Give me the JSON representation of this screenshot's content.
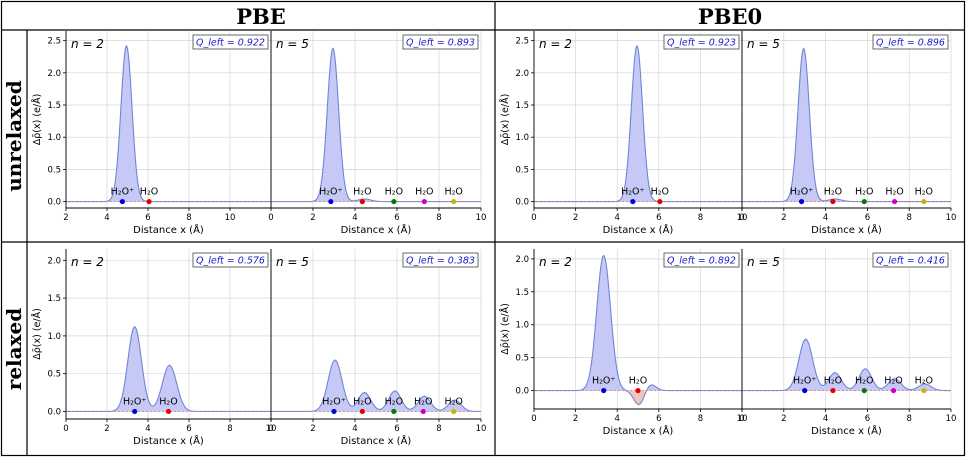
{
  "column_headers": [
    "PBE",
    "PBE0"
  ],
  "row_headers": [
    "unrelaxed",
    "relaxed"
  ],
  "colors": {
    "fill_positive": "#c6c9f5",
    "fill_negative": "#f6c3c3",
    "line": "#6f86d6",
    "grid": "#d6d6d6",
    "q_label": "#1a1acc",
    "marker_h3o": "#0000dd",
    "marker_h2o_1": "#e60000",
    "marker_h2o_2": "#007a00",
    "marker_h2o_3": "#cc00cc",
    "marker_h2o_4": "#c8b400"
  },
  "chart_data": [
    {
      "type": "area",
      "functional": "PBE",
      "geometry": "unrelaxed",
      "n_label": "n = 2",
      "q_label": "Q_left = 0.922",
      "xlabel": "Distance x (Å)",
      "ylabel": "Δρ̄(x) (e/Å)",
      "xlim": [
        2,
        12
      ],
      "ylim": [
        -0.1,
        2.65
      ],
      "xticks": [
        "2",
        "4",
        "6",
        "8",
        "10"
      ],
      "yticks": [
        "0.0",
        "0.5",
        "1.0",
        "1.5",
        "2.0",
        "2.5"
      ],
      "peaks": [
        {
          "center": 4.95,
          "height": 2.42,
          "width": 0.27
        }
      ],
      "markers": [
        {
          "label": "H₂O⁺",
          "x": 4.75,
          "color": "#0000dd"
        },
        {
          "label": "H₂O",
          "x": 6.05,
          "color": "#e60000"
        }
      ]
    },
    {
      "type": "area",
      "functional": "PBE",
      "geometry": "unrelaxed",
      "n_label": "n = 5",
      "q_label": "Q_left = 0.893",
      "xlabel": "Distance x (Å)",
      "xlim": [
        0,
        10
      ],
      "ylim": [
        -0.1,
        2.65
      ],
      "xticks": [
        "0",
        "2",
        "4",
        "6",
        "8",
        "10"
      ],
      "peaks": [
        {
          "center": 2.95,
          "height": 2.38,
          "width": 0.27
        },
        {
          "center": 4.45,
          "height": 0.04,
          "width": 0.3
        }
      ],
      "markers": [
        {
          "label": "H₂O⁺",
          "x": 2.85,
          "color": "#0000dd"
        },
        {
          "label": "H₂O",
          "x": 4.35,
          "color": "#e60000"
        },
        {
          "label": "H₂O",
          "x": 5.85,
          "color": "#007a00"
        },
        {
          "label": "H₂O",
          "x": 7.3,
          "color": "#cc00cc"
        },
        {
          "label": "H₂O",
          "x": 8.7,
          "color": "#c8b400"
        }
      ]
    },
    {
      "type": "area",
      "functional": "PBE0",
      "geometry": "unrelaxed",
      "n_label": "n = 2",
      "q_label": "Q_left = 0.923",
      "xlabel": "Distance x (Å)",
      "ylabel": "Δρ̄(x) (e/Å)",
      "xlim": [
        0,
        10
      ],
      "ylim": [
        -0.1,
        2.65
      ],
      "xticks": [
        "0",
        "2",
        "4",
        "6",
        "8",
        "10"
      ],
      "yticks": [
        "0.0",
        "0.5",
        "1.0",
        "1.5",
        "2.0",
        "2.5"
      ],
      "peaks": [
        {
          "center": 4.95,
          "height": 2.42,
          "width": 0.27
        }
      ],
      "markers": [
        {
          "label": "H₂O⁺",
          "x": 4.75,
          "color": "#0000dd"
        },
        {
          "label": "H₂O",
          "x": 6.05,
          "color": "#e60000"
        }
      ]
    },
    {
      "type": "area",
      "functional": "PBE0",
      "geometry": "unrelaxed",
      "n_label": "n = 5",
      "q_label": "Q_left = 0.896",
      "xlabel": "Distance x (Å)",
      "xlim": [
        0,
        10
      ],
      "ylim": [
        -0.1,
        2.65
      ],
      "xticks": [
        "0",
        "2",
        "4",
        "6",
        "8",
        "10"
      ],
      "peaks": [
        {
          "center": 2.95,
          "height": 2.38,
          "width": 0.27
        },
        {
          "center": 4.45,
          "height": 0.04,
          "width": 0.3
        }
      ],
      "markers": [
        {
          "label": "H₂O⁺",
          "x": 2.85,
          "color": "#0000dd"
        },
        {
          "label": "H₂O",
          "x": 4.35,
          "color": "#e60000"
        },
        {
          "label": "H₂O",
          "x": 5.85,
          "color": "#007a00"
        },
        {
          "label": "H₂O",
          "x": 7.3,
          "color": "#cc00cc"
        },
        {
          "label": "H₂O",
          "x": 8.7,
          "color": "#c8b400"
        }
      ]
    },
    {
      "type": "area",
      "functional": "PBE",
      "geometry": "relaxed",
      "n_label": "n = 2",
      "q_label": "Q_left = 0.576",
      "xlabel": "Distance x (Å)",
      "ylabel": "Δρ̄(x) (e/Å)",
      "xlim": [
        0,
        10
      ],
      "ylim": [
        -0.1,
        2.15
      ],
      "xticks": [
        "0",
        "2",
        "4",
        "6",
        "8",
        "10"
      ],
      "yticks": [
        "0.0",
        "0.5",
        "1.0",
        "1.5",
        "2.0"
      ],
      "peaks": [
        {
          "center": 3.35,
          "height": 1.12,
          "width": 0.33
        },
        {
          "center": 5.05,
          "height": 0.61,
          "width": 0.35
        }
      ],
      "markers": [
        {
          "label": "H₂O⁺",
          "x": 3.35,
          "color": "#0000dd"
        },
        {
          "label": "H₂O",
          "x": 5.0,
          "color": "#e60000"
        }
      ]
    },
    {
      "type": "area",
      "functional": "PBE",
      "geometry": "relaxed",
      "n_label": "n = 5",
      "q_label": "Q_left = 0.383",
      "xlabel": "Distance x (Å)",
      "xlim": [
        0,
        10
      ],
      "ylim": [
        -0.1,
        2.15
      ],
      "xticks": [
        "0",
        "2",
        "4",
        "6",
        "8",
        "10"
      ],
      "peaks": [
        {
          "center": 3.05,
          "height": 0.68,
          "width": 0.33
        },
        {
          "center": 4.45,
          "height": 0.25,
          "width": 0.3
        },
        {
          "center": 5.9,
          "height": 0.27,
          "width": 0.3
        },
        {
          "center": 7.3,
          "height": 0.2,
          "width": 0.3
        },
        {
          "center": 8.75,
          "height": 0.15,
          "width": 0.3
        }
      ],
      "markers": [
        {
          "label": "H₂O⁺",
          "x": 3.0,
          "color": "#0000dd"
        },
        {
          "label": "H₂O",
          "x": 4.35,
          "color": "#e60000"
        },
        {
          "label": "H₂O",
          "x": 5.85,
          "color": "#007a00"
        },
        {
          "label": "H₂O",
          "x": 7.25,
          "color": "#cc00cc"
        },
        {
          "label": "H₂O",
          "x": 8.7,
          "color": "#c8b400"
        }
      ]
    },
    {
      "type": "area",
      "functional": "PBE0",
      "geometry": "relaxed",
      "n_label": "n = 2",
      "q_label": "Q_left = 0.892",
      "xlabel": "Distance x (Å)",
      "ylabel": "Δρ̄(x) (e/Å)",
      "xlim": [
        0,
        10
      ],
      "ylim": [
        -0.28,
        2.15
      ],
      "xticks": [
        "0",
        "2",
        "4",
        "6",
        "8",
        "10"
      ],
      "yticks": [
        "0.0",
        "0.5",
        "1.0",
        "1.5",
        "2.0"
      ],
      "peaks": [
        {
          "center": 3.35,
          "height": 2.05,
          "width": 0.33
        },
        {
          "center": 5.05,
          "height": -0.22,
          "width": 0.25
        },
        {
          "center": 5.6,
          "height": 0.1,
          "width": 0.25
        }
      ],
      "markers": [
        {
          "label": "H₂O⁺",
          "x": 3.35,
          "color": "#0000dd"
        },
        {
          "label": "H₂O",
          "x": 5.0,
          "color": "#e60000"
        }
      ]
    },
    {
      "type": "area",
      "functional": "PBE0",
      "geometry": "relaxed",
      "n_label": "n = 5",
      "q_label": "Q_left = 0.416",
      "xlabel": "Distance x (Å)",
      "xlim": [
        0,
        10
      ],
      "ylim": [
        -0.28,
        2.15
      ],
      "xticks": [
        "0",
        "2",
        "4",
        "6",
        "8",
        "10"
      ],
      "peaks": [
        {
          "center": 3.05,
          "height": 0.78,
          "width": 0.33
        },
        {
          "center": 4.45,
          "height": 0.27,
          "width": 0.3
        },
        {
          "center": 5.9,
          "height": 0.33,
          "width": 0.3
        },
        {
          "center": 7.3,
          "height": 0.18,
          "width": 0.3
        },
        {
          "center": 8.75,
          "height": 0.1,
          "width": 0.3
        }
      ],
      "markers": [
        {
          "label": "H₂O⁺",
          "x": 3.0,
          "color": "#0000dd"
        },
        {
          "label": "H₂O",
          "x": 4.35,
          "color": "#e60000"
        },
        {
          "label": "H₂O",
          "x": 5.85,
          "color": "#007a00"
        },
        {
          "label": "H₂O",
          "x": 7.25,
          "color": "#cc00cc"
        },
        {
          "label": "H₂O",
          "x": 8.7,
          "color": "#c8b400"
        }
      ]
    }
  ]
}
